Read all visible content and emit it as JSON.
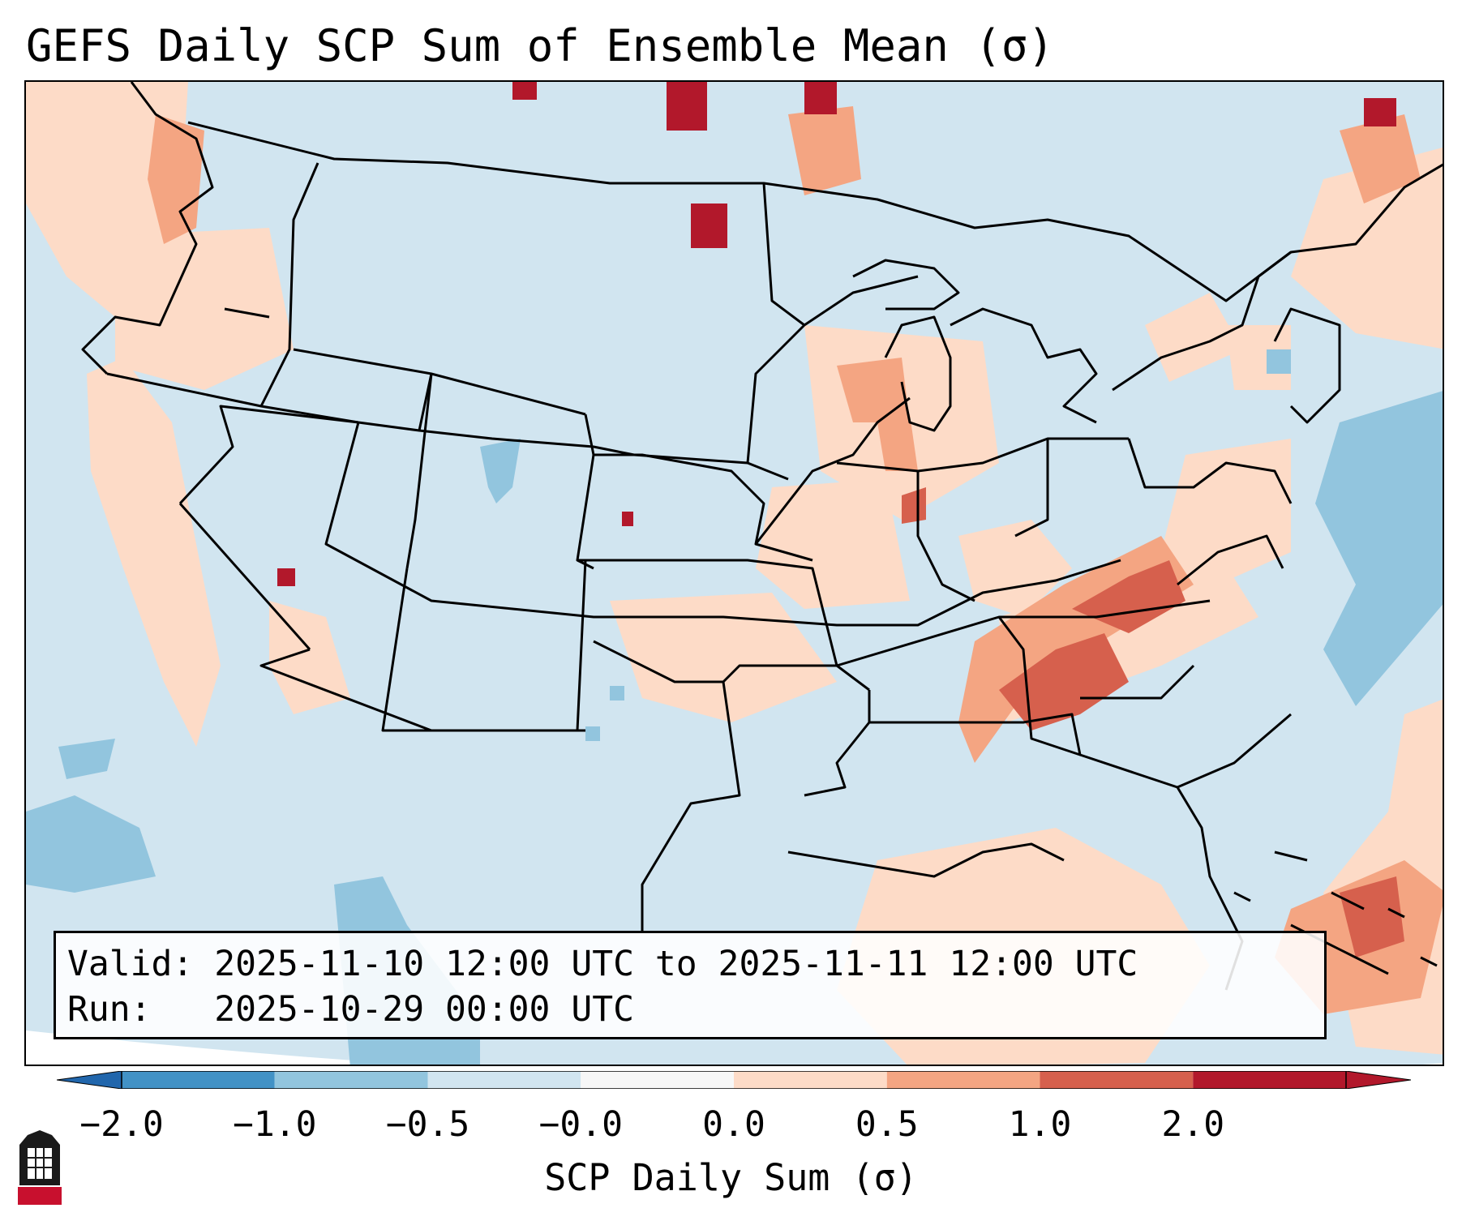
{
  "title": "GEFS Daily SCP Sum of Ensemble Mean (σ)",
  "info": {
    "valid_label": "Valid:",
    "valid_value": "2025-11-10 12:00 UTC to 2025-11-11 12:00 UTC",
    "run_label": "Run:",
    "run_value": "2025-10-29 00:00 UTC"
  },
  "colorbar": {
    "label": "SCP Daily Sum (σ)",
    "ticks": [
      "−2.0",
      "−1.0",
      "−0.5",
      "−0.0",
      "0.0",
      "0.5",
      "1.0",
      "2.0"
    ],
    "colors": [
      "#4292c6",
      "#92c5de",
      "#d1e5f0",
      "#f7f7f7",
      "#fddbc7",
      "#f4a582",
      "#d6604d",
      "#b2182b"
    ]
  },
  "map": {
    "background": "#d1e5f0",
    "regions": [
      {
        "label": "West Coast / Pacific Northwest",
        "level": "0.0 to 0.5"
      },
      {
        "label": "Tennessee Valley / Alabama / Georgia",
        "level": "0.5 to 2.0"
      },
      {
        "label": "Western Atlantic / Bahamas",
        "level": "0.5 to 1.0"
      },
      {
        "label": "Gulf of Mexico",
        "level": "0.0 to 0.5"
      },
      {
        "label": "Upper Midwest / Great Lakes",
        "level": "0.0 to 1.0"
      },
      {
        "label": "Atlantic offshore",
        "level": "-1.0 to -0.5"
      }
    ]
  },
  "logo": {
    "text": "NIU"
  }
}
